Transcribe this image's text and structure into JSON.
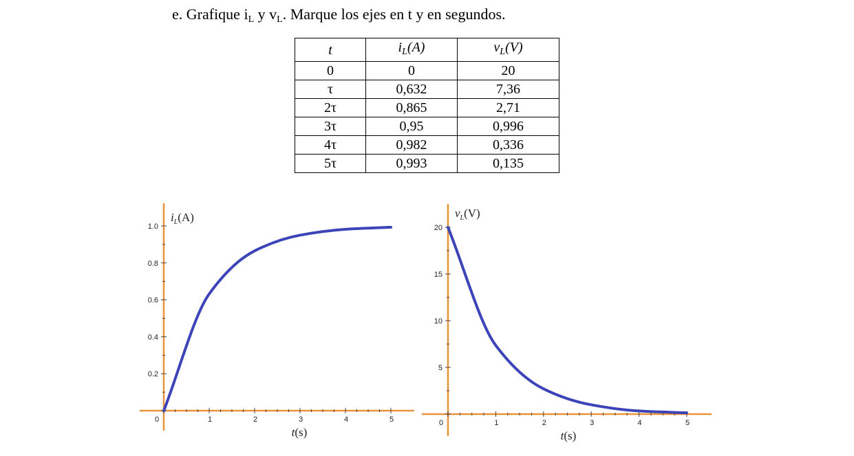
{
  "instruction": {
    "prefix": "e. Grafique i",
    "sub1": "L",
    "middle": " y v",
    "sub2": "L",
    "suffix": ". Marque los ejes en t y en segundos."
  },
  "table": {
    "headers": [
      {
        "main": "t",
        "sub": ""
      },
      {
        "main": "i",
        "sub": "L",
        "unit": "(A)"
      },
      {
        "main": "v",
        "sub": "L",
        "unit": "(V)"
      }
    ],
    "rows": [
      [
        "0",
        "0",
        "20"
      ],
      [
        "τ",
        "0,632",
        "7,36"
      ],
      [
        "2τ",
        "0,865",
        "2,71"
      ],
      [
        "3τ",
        "0,95",
        "0,996"
      ],
      [
        "4τ",
        "0,982",
        "0,336"
      ],
      [
        "5τ",
        "0,993",
        "0,135"
      ]
    ]
  },
  "colors": {
    "axis": "#e8923a",
    "curve": "#3d44b8",
    "ticks": "#444444"
  },
  "chart_data": [
    {
      "type": "line",
      "title": "",
      "ylabel": "i_L(A)",
      "xlabel": "t(s)",
      "xlim": [
        0,
        5
      ],
      "ylim": [
        0,
        1.0
      ],
      "x_ticks": [
        "1",
        "2",
        "3",
        "4",
        "5"
      ],
      "y_ticks": [
        "0.2",
        "0.4",
        "0.6",
        "0.8",
        "1.0"
      ],
      "origin_label": "0",
      "x": [
        0,
        1,
        2,
        3,
        4,
        5
      ],
      "series": [
        {
          "values": [
            0,
            0.632,
            0.865,
            0.95,
            0.982,
            0.993
          ]
        }
      ]
    },
    {
      "type": "line",
      "title": "",
      "ylabel": "v_L(V)",
      "xlabel": "t(s)",
      "xlim": [
        0,
        5
      ],
      "ylim": [
        0,
        20
      ],
      "x_ticks": [
        "1",
        "2",
        "3",
        "4",
        "5"
      ],
      "y_ticks": [
        "5",
        "10",
        "15",
        "20"
      ],
      "origin_label": "0",
      "x": [
        0,
        1,
        2,
        3,
        4,
        5
      ],
      "series": [
        {
          "values": [
            20,
            7.36,
            2.71,
            0.996,
            0.336,
            0.135
          ]
        }
      ]
    }
  ]
}
